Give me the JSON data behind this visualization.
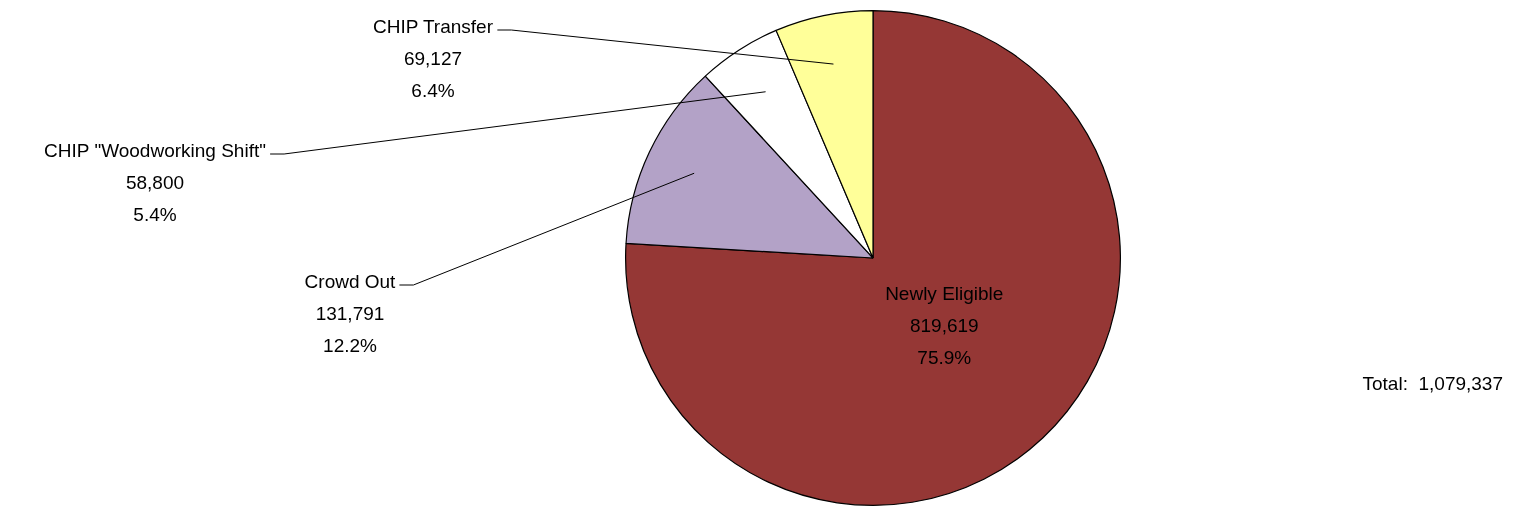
{
  "chart_data": {
    "type": "pie",
    "categories": [
      "Newly Eligible",
      "Crowd Out",
      "CHIP \"Woodworking Shift\"",
      "CHIP Transfer"
    ],
    "values": [
      819619,
      131791,
      58800,
      69127
    ],
    "colors": [
      "#953735",
      "#b3a2c7",
      "#ffffff",
      "#ffff99"
    ],
    "value_labels": [
      "819,619\n75.9%",
      "131,791\n12.2%",
      "58,800\n5.4%",
      "69,127\n6.4%"
    ],
    "annotations": [
      "Total:  1,079,337"
    ],
    "legend": false
  }
}
